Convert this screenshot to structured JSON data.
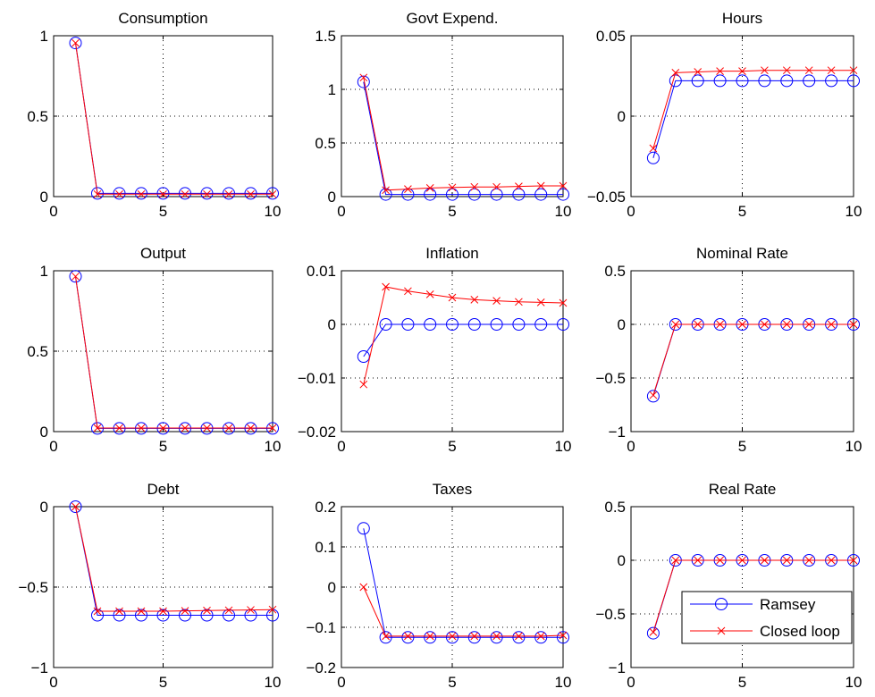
{
  "chart_data": [
    {
      "type": "line",
      "title": "Consumption",
      "x": [
        1,
        2,
        3,
        4,
        5,
        6,
        7,
        8,
        9,
        10
      ],
      "xlim": [
        0,
        10
      ],
      "ylim": [
        0,
        1
      ],
      "xticks": [
        "0",
        "5",
        "10"
      ],
      "yticks": [
        "0",
        "0.5",
        "1"
      ],
      "grid": true,
      "series": [
        {
          "name": "Ramsey",
          "values": [
            0.955,
            0.02,
            0.02,
            0.02,
            0.02,
            0.02,
            0.02,
            0.02,
            0.02,
            0.02
          ]
        },
        {
          "name": "Closed loop",
          "values": [
            0.955,
            0.015,
            0.015,
            0.015,
            0.015,
            0.015,
            0.015,
            0.015,
            0.015,
            0.015
          ]
        }
      ]
    },
    {
      "type": "line",
      "title": "Govt Expend.",
      "x": [
        1,
        2,
        3,
        4,
        5,
        6,
        7,
        8,
        9,
        10
      ],
      "xlim": [
        0,
        10
      ],
      "ylim": [
        0,
        1.5
      ],
      "xticks": [
        "0",
        "5",
        "10"
      ],
      "yticks": [
        "0",
        "0.5",
        "1",
        "1.5"
      ],
      "grid": true,
      "series": [
        {
          "name": "Ramsey",
          "values": [
            1.07,
            0.02,
            0.02,
            0.02,
            0.02,
            0.02,
            0.02,
            0.02,
            0.02,
            0.02
          ]
        },
        {
          "name": "Closed loop",
          "values": [
            1.11,
            0.06,
            0.07,
            0.08,
            0.085,
            0.09,
            0.09,
            0.095,
            0.1,
            0.1
          ]
        }
      ]
    },
    {
      "type": "line",
      "title": "Hours",
      "x": [
        1,
        2,
        3,
        4,
        5,
        6,
        7,
        8,
        9,
        10
      ],
      "xlim": [
        0,
        10
      ],
      "ylim": [
        -0.05,
        0.05
      ],
      "xticks": [
        "0",
        "5",
        "10"
      ],
      "yticks": [
        "-0.05",
        "0",
        "0.05"
      ],
      "grid": true,
      "series": [
        {
          "name": "Ramsey",
          "values": [
            -0.026,
            0.022,
            0.022,
            0.022,
            0.022,
            0.022,
            0.022,
            0.022,
            0.022,
            0.022
          ]
        },
        {
          "name": "Closed loop",
          "values": [
            -0.02,
            0.027,
            0.0275,
            0.028,
            0.028,
            0.0285,
            0.0285,
            0.0285,
            0.0285,
            0.0285
          ]
        }
      ]
    },
    {
      "type": "line",
      "title": "Output",
      "x": [
        1,
        2,
        3,
        4,
        5,
        6,
        7,
        8,
        9,
        10
      ],
      "xlim": [
        0,
        10
      ],
      "ylim": [
        0,
        1
      ],
      "xticks": [
        "0",
        "5",
        "10"
      ],
      "yticks": [
        "0",
        "0.5",
        "1"
      ],
      "grid": true,
      "series": [
        {
          "name": "Ramsey",
          "values": [
            0.965,
            0.02,
            0.02,
            0.02,
            0.02,
            0.02,
            0.02,
            0.02,
            0.02,
            0.02
          ]
        },
        {
          "name": "Closed loop",
          "values": [
            0.965,
            0.022,
            0.022,
            0.022,
            0.022,
            0.022,
            0.022,
            0.022,
            0.022,
            0.022
          ]
        }
      ]
    },
    {
      "type": "line",
      "title": "Inflation",
      "x": [
        1,
        2,
        3,
        4,
        5,
        6,
        7,
        8,
        9,
        10
      ],
      "xlim": [
        0,
        10
      ],
      "ylim": [
        -0.02,
        0.01
      ],
      "xticks": [
        "0",
        "5",
        "10"
      ],
      "yticks": [
        "-0.02",
        "-0.01",
        "0",
        "0.01"
      ],
      "grid": true,
      "series": [
        {
          "name": "Ramsey",
          "values": [
            -0.006,
            0,
            0,
            0,
            0,
            0,
            0,
            0,
            0,
            0
          ]
        },
        {
          "name": "Closed loop",
          "values": [
            -0.0112,
            0.007,
            0.0062,
            0.0056,
            0.005,
            0.0046,
            0.0044,
            0.0042,
            0.0041,
            0.004
          ]
        }
      ]
    },
    {
      "type": "line",
      "title": "Nominal Rate",
      "x": [
        1,
        2,
        3,
        4,
        5,
        6,
        7,
        8,
        9,
        10
      ],
      "xlim": [
        0,
        10
      ],
      "ylim": [
        -1,
        0.5
      ],
      "xticks": [
        "0",
        "5",
        "10"
      ],
      "yticks": [
        "-1",
        "-0.5",
        "0",
        "0.5"
      ],
      "grid": true,
      "series": [
        {
          "name": "Ramsey",
          "values": [
            -0.67,
            0,
            0,
            0,
            0,
            0,
            0,
            0,
            0,
            0
          ]
        },
        {
          "name": "Closed loop",
          "values": [
            -0.66,
            0,
            0,
            0,
            0,
            0,
            0,
            0,
            0,
            0
          ]
        }
      ]
    },
    {
      "type": "line",
      "title": "Debt",
      "x": [
        1,
        2,
        3,
        4,
        5,
        6,
        7,
        8,
        9,
        10
      ],
      "xlim": [
        0,
        10
      ],
      "ylim": [
        -1,
        0
      ],
      "xticks": [
        "0",
        "5",
        "10"
      ],
      "yticks": [
        "-1",
        "-0.5",
        "0"
      ],
      "grid": true,
      "series": [
        {
          "name": "Ramsey",
          "values": [
            0,
            -0.675,
            -0.675,
            -0.675,
            -0.675,
            -0.675,
            -0.675,
            -0.675,
            -0.675,
            -0.675
          ]
        },
        {
          "name": "Closed loop",
          "values": [
            0,
            -0.65,
            -0.65,
            -0.65,
            -0.65,
            -0.648,
            -0.646,
            -0.644,
            -0.642,
            -0.64
          ]
        }
      ]
    },
    {
      "type": "line",
      "title": "Taxes",
      "x": [
        1,
        2,
        3,
        4,
        5,
        6,
        7,
        8,
        9,
        10
      ],
      "xlim": [
        0,
        10
      ],
      "ylim": [
        -0.2,
        0.2
      ],
      "xticks": [
        "0",
        "5",
        "10"
      ],
      "yticks": [
        "-0.2",
        "-0.1",
        "0",
        "0.1",
        "0.2"
      ],
      "grid": true,
      "series": [
        {
          "name": "Ramsey",
          "values": [
            0.146,
            -0.125,
            -0.125,
            -0.125,
            -0.125,
            -0.125,
            -0.125,
            -0.125,
            -0.125,
            -0.125
          ]
        },
        {
          "name": "Closed loop",
          "values": [
            0,
            -0.122,
            -0.122,
            -0.122,
            -0.122,
            -0.122,
            -0.122,
            -0.122,
            -0.122,
            -0.12
          ]
        }
      ]
    },
    {
      "type": "line",
      "title": "Real Rate",
      "x": [
        1,
        2,
        3,
        4,
        5,
        6,
        7,
        8,
        9,
        10
      ],
      "xlim": [
        0,
        10
      ],
      "ylim": [
        -1,
        0.5
      ],
      "xticks": [
        "0",
        "5",
        "10"
      ],
      "yticks": [
        "-1",
        "-0.5",
        "0",
        "0.5"
      ],
      "grid": true,
      "series": [
        {
          "name": "Ramsey",
          "values": [
            -0.68,
            0,
            0,
            0,
            0,
            0,
            0,
            0,
            0,
            0
          ]
        },
        {
          "name": "Closed loop",
          "values": [
            -0.67,
            0,
            0,
            0,
            0,
            0,
            0,
            0,
            0,
            0
          ]
        }
      ]
    }
  ],
  "legend": {
    "placement": "bottom-right",
    "entries": [
      {
        "label": "Ramsey",
        "color": "#0000ff",
        "marker": "circle"
      },
      {
        "label": "Closed loop",
        "color": "#ff0000",
        "marker": "x"
      }
    ]
  },
  "colors": {
    "ramsey": "#0000ff",
    "closed_loop": "#ff0000",
    "axis": "#000000",
    "grid": "#000000"
  }
}
